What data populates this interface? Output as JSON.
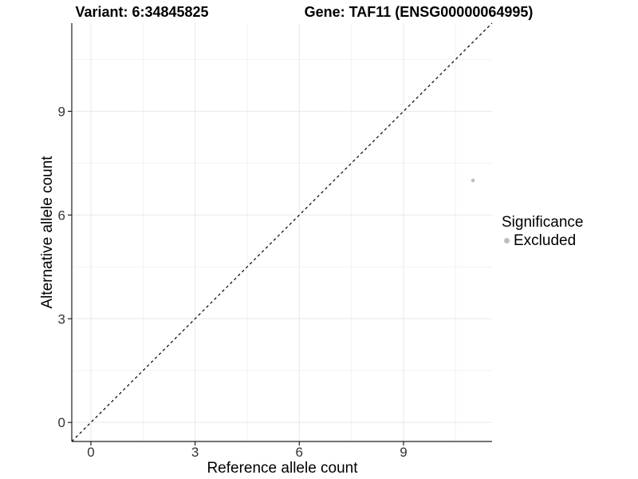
{
  "title_left": "Variant: 6:34845825",
  "title_right": "Gene: TAF11 (ENSG00000064995)",
  "chart_data": {
    "type": "scatter",
    "xlabel": "Reference allele count",
    "ylabel": "Alternative allele count",
    "xlim": [
      -0.55,
      11.55
    ],
    "ylim": [
      -0.55,
      11.55
    ],
    "x_ticks": [
      0,
      3,
      6,
      9
    ],
    "y_ticks": [
      0,
      3,
      6,
      9
    ],
    "x_minor_ticks": [
      1.5,
      4.5,
      7.5,
      10.5
    ],
    "y_minor_ticks": [
      1.5,
      4.5,
      7.5,
      10.5
    ],
    "grid": "major+minor",
    "identity_line": {
      "slope": 1,
      "intercept": 0,
      "style": "dashed",
      "color": "#000000"
    },
    "series": [
      {
        "name": "Excluded",
        "color": "#bebebe",
        "marker": "circle",
        "points": [
          [
            11,
            7
          ]
        ]
      }
    ],
    "legend": {
      "title": "Significance",
      "position": "right",
      "items": [
        {
          "label": "Excluded",
          "color": "#bebebe"
        }
      ]
    }
  },
  "colors": {
    "background": "#ffffff",
    "grid_major": "#e8e8e8",
    "grid_minor": "#f2f2f2",
    "axis_line": "#1f1f1f",
    "tick_label": "#333333",
    "point": "#bebebe"
  }
}
